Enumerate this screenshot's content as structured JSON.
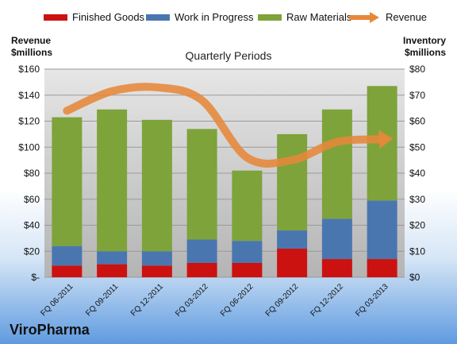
{
  "legend": {
    "finished": "Finished Goods",
    "wip": "Work in Progress",
    "raw": "Raw Materials",
    "revenue": "Revenue"
  },
  "left_axis_title": [
    "Revenue",
    "$millions"
  ],
  "right_axis_title": [
    "Inventory",
    "$millions"
  ],
  "subtitle": "Quarterly Periods",
  "brand": "ViroPharma",
  "colors": {
    "finished": "#cc1111",
    "wip": "#4a76b0",
    "raw": "#7ea33a",
    "revenue": "#e6883a",
    "plot_bg": "#c8c8c8"
  },
  "chart_data": {
    "type": "bar",
    "stacked": true,
    "title": "Quarterly Periods",
    "categories": [
      "FQ 06-2011",
      "FQ 09-2011",
      "FQ 12-2011",
      "FQ 03-2012",
      "FQ 06-2012",
      "FQ 09-2012",
      "FQ 12-2012",
      "FQ 03-2013"
    ],
    "series": [
      {
        "name": "Finished Goods",
        "axis": "right",
        "values": [
          4.5,
          5,
          4.5,
          5.5,
          5.5,
          11,
          7,
          7
        ]
      },
      {
        "name": "Work in Progress",
        "axis": "right",
        "values": [
          7.5,
          5,
          5.5,
          9,
          8.5,
          7,
          15.5,
          22.5
        ]
      },
      {
        "name": "Raw Materials",
        "axis": "right",
        "values": [
          49.5,
          54.5,
          50.5,
          42.5,
          27,
          37,
          42,
          44
        ]
      },
      {
        "name": "Revenue",
        "type": "line",
        "axis": "left",
        "values": [
          128,
          143,
          146,
          136,
          92,
          90,
          104,
          106
        ]
      }
    ],
    "y_left": {
      "label": "Revenue $millions",
      "ylim": [
        0,
        160
      ],
      "ticks": [
        "$-",
        "$20",
        "$40",
        "$60",
        "$80",
        "$100",
        "$120",
        "$140",
        "$160"
      ]
    },
    "y_right": {
      "label": "Inventory $millions",
      "ylim": [
        0,
        80
      ],
      "ticks": [
        "$0",
        "$10",
        "$20",
        "$30",
        "$40",
        "$50",
        "$60",
        "$70",
        "$80"
      ]
    },
    "grid": true,
    "legend_position": "top"
  }
}
